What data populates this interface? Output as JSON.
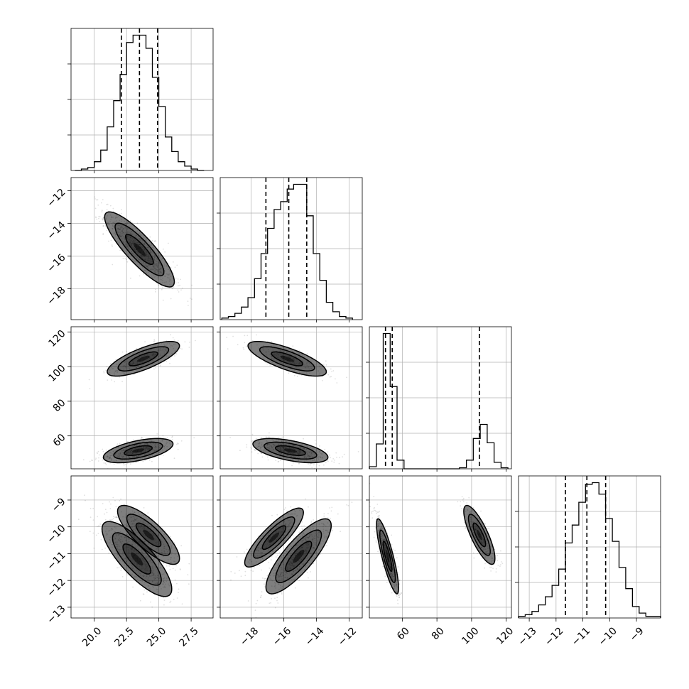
{
  "colors": {
    "frame": "#000000",
    "grid": "#b0b0b0",
    "points": "#000000",
    "density": "#000000",
    "quantile_line": "#000000"
  },
  "chart_data": {
    "type": "corner",
    "title": "",
    "grid": true,
    "parameters": [
      {
        "range": [
          18.2,
          29.2
        ],
        "ticks": [
          20.0,
          22.5,
          25.0,
          27.5
        ],
        "tick_labels": [
          "20.0",
          "22.5",
          "25.0",
          "27.5"
        ],
        "quantiles": [
          22.1,
          23.5,
          24.9
        ],
        "hist_bins": [
          18.5,
          19.0,
          19.5,
          20.0,
          20.5,
          21.0,
          21.5,
          22.0,
          22.5,
          23.0,
          23.5,
          24.0,
          24.5,
          25.0,
          25.5,
          26.0,
          26.5,
          27.0,
          27.5,
          28.0,
          28.5
        ],
        "hist_counts": [
          0,
          1,
          2,
          6,
          14,
          30,
          48,
          66,
          88,
          93,
          93,
          84,
          64,
          44,
          23,
          13,
          6,
          3,
          1,
          0
        ]
      },
      {
        "range": [
          -19.9,
          -11.2
        ],
        "ticks": [
          -18,
          -16,
          -14,
          -12
        ],
        "tick_labels": [
          "−18",
          "−16",
          "−14",
          "−12"
        ],
        "quantiles": [
          -17.1,
          -15.7,
          -14.6
        ],
        "hist_bins": [
          -19.8,
          -19.4,
          -19.0,
          -18.6,
          -18.2,
          -17.8,
          -17.4,
          -17.0,
          -16.6,
          -16.2,
          -15.8,
          -15.4,
          -15.0,
          -14.6,
          -14.2,
          -13.8,
          -13.4,
          -13.0,
          -12.6,
          -12.2,
          -11.8
        ],
        "hist_counts": [
          1,
          2,
          4,
          8,
          14,
          26,
          42,
          58,
          70,
          75,
          83,
          86,
          86,
          66,
          42,
          25,
          11,
          5,
          2,
          1
        ]
      },
      {
        "range": [
          41,
          123
        ],
        "ticks": [
          60,
          80,
          100,
          120
        ],
        "tick_labels": [
          "60",
          "80",
          "100",
          "120"
        ],
        "quantiles": [
          50.3,
          54.2,
          104.5
        ],
        "hist_bins": [
          41,
          45,
          49,
          53,
          57,
          61,
          65,
          69,
          73,
          77,
          81,
          85,
          89,
          93,
          97,
          101,
          105,
          109,
          113,
          117,
          121
        ],
        "hist_counts": [
          2,
          23,
          125,
          76,
          8,
          0,
          0,
          0,
          0,
          0,
          0,
          0,
          0,
          1,
          8,
          28,
          41,
          24,
          6,
          1
        ]
      },
      {
        "range": [
          -13.4,
          -8.1
        ],
        "ticks": [
          -13,
          -12,
          -11,
          -10,
          -9
        ],
        "tick_labels": [
          "−13",
          "−12",
          "−11",
          "−10",
          "−9"
        ],
        "quantiles": [
          -11.65,
          -10.85,
          -10.15
        ],
        "hist_bins": [
          -13.4,
          -13.15,
          -12.9,
          -12.65,
          -12.4,
          -12.15,
          -11.9,
          -11.65,
          -11.4,
          -11.15,
          -10.9,
          -10.65,
          -10.4,
          -10.15,
          -9.9,
          -9.65,
          -9.4,
          -9.15,
          -8.9,
          -8.65,
          -8.4,
          -8.1
        ],
        "hist_counts": [
          1,
          2,
          4,
          8,
          13,
          20,
          30,
          46,
          57,
          71,
          82,
          83,
          76,
          61,
          47,
          31,
          18,
          7,
          3,
          1,
          1
        ]
      }
    ],
    "scatter_params": [
      {
        "pair": [
          1,
          0
        ],
        "populations": [
          {
            "mean": [
              23.5,
              -15.6
            ],
            "sd": [
              1.35,
              1.15
            ],
            "corr": -0.86,
            "weight": 1.0
          }
        ]
      },
      {
        "pair": [
          2,
          0
        ],
        "populations": [
          {
            "mean": [
              23.4,
              51.5
            ],
            "sd": [
              1.35,
              3.5
            ],
            "corr": 0.55,
            "weight": 0.65
          },
          {
            "mean": [
              23.8,
              104.5
            ],
            "sd": [
              1.4,
              5.0
            ],
            "corr": 0.75,
            "weight": 0.35
          }
        ]
      },
      {
        "pair": [
          2,
          1
        ],
        "populations": [
          {
            "mean": [
              -15.6,
              51.5
            ],
            "sd": [
              1.15,
              3.5
            ],
            "corr": -0.55,
            "weight": 0.65
          },
          {
            "mean": [
              -15.8,
              104.5
            ],
            "sd": [
              1.2,
              5.0
            ],
            "corr": -0.75,
            "weight": 0.35
          }
        ]
      },
      {
        "pair": [
          3,
          0
        ],
        "populations": [
          {
            "mean": [
              23.3,
              -11.2
            ],
            "sd": [
              1.35,
              0.7
            ],
            "corr": -0.8,
            "weight": 0.65
          },
          {
            "mean": [
              24.2,
              -10.3
            ],
            "sd": [
              1.2,
              0.55
            ],
            "corr": -0.8,
            "weight": 0.35
          }
        ]
      },
      {
        "pair": [
          3,
          1
        ],
        "populations": [
          {
            "mean": [
              -15.1,
              -11.1
            ],
            "sd": [
              1.0,
              0.7
            ],
            "corr": 0.82,
            "weight": 0.65
          },
          {
            "mean": [
              -16.6,
              -10.4
            ],
            "sd": [
              0.9,
              0.55
            ],
            "corr": 0.85,
            "weight": 0.35
          }
        ]
      },
      {
        "pair": [
          3,
          2
        ],
        "populations": [
          {
            "mean": [
              51.5,
              -11.1
            ],
            "sd": [
              3.2,
              0.7
            ],
            "corr": -0.85,
            "weight": 0.65
          },
          {
            "mean": [
              104.5,
              -10.3
            ],
            "sd": [
              4.5,
              0.55
            ],
            "corr": -0.8,
            "weight": 0.35
          }
        ]
      }
    ]
  }
}
